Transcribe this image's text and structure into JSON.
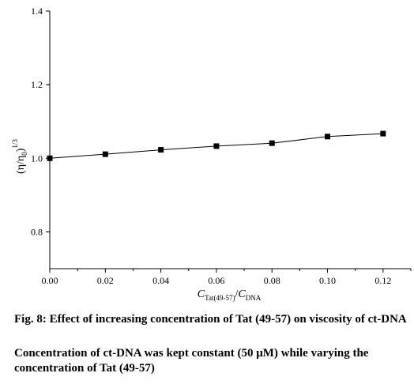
{
  "chart_data": {
    "type": "line",
    "x": [
      0.0,
      0.02,
      0.04,
      0.06,
      0.08,
      0.1,
      0.12
    ],
    "series": [
      {
        "values": [
          1.0,
          1.011,
          1.023,
          1.033,
          1.041,
          1.059,
          1.067
        ]
      }
    ],
    "marker": "square",
    "xlim": [
      0.0,
      0.13
    ],
    "ylim": [
      0.7,
      1.4
    ],
    "xticks": [
      "0.00",
      "0.02",
      "0.04",
      "0.06",
      "0.08",
      "0.10",
      "0.12"
    ],
    "yticks": [
      "0.8",
      "1.0",
      "1.2",
      "1.4"
    ],
    "xtick_values": [
      0.0,
      0.02,
      0.04,
      0.06,
      0.08,
      0.1,
      0.12
    ],
    "ytick_values": [
      0.8,
      1.0,
      1.2,
      1.4
    ],
    "xlabel": {
      "c1": "C",
      "sub1": "Tat(49-57)",
      "slash": "/",
      "c2": "C",
      "sub2": "DNA"
    },
    "ylabel": {
      "base": "(η/η",
      "sub": "0",
      "close": ")",
      "sup": "1/3"
    },
    "grid": false
  },
  "caption": {
    "title": "Fig. 8: Effect of increasing concentration of Tat (49-57) on viscosity of ct-DNA",
    "note": "Concentration of ct-DNA was kept constant (50 μM) while varying the concentration of Tat (49-57)"
  }
}
